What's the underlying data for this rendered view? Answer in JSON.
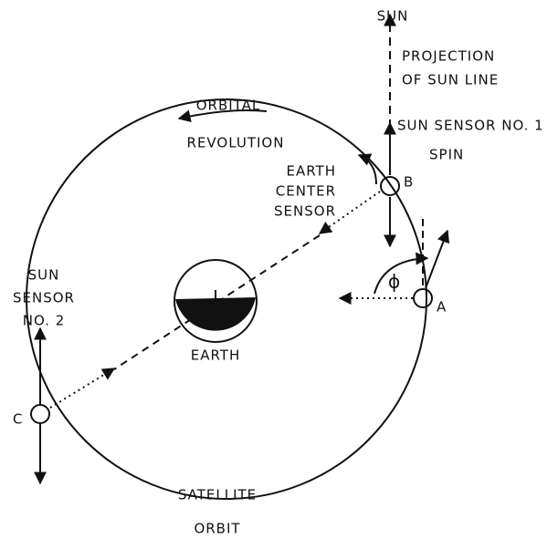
{
  "labels": {
    "sun": "SUN",
    "projection_1": "PROJECTION",
    "projection_2": "OF SUN LINE",
    "sun_sensor_1": "SUN SENSOR NO. 1",
    "spin": "SPIN",
    "orbital_1": "ORBITAL",
    "orbital_2": "REVOLUTION",
    "earth_sensor_1": "EARTH",
    "earth_sensor_2": "CENTER",
    "earth_sensor_3": "SENSOR",
    "point_b": "B",
    "point_a": "A",
    "point_c": "C",
    "angle": "ϕ",
    "sun_sensor_2_1": "SUN",
    "sun_sensor_2_2": "SENSOR",
    "sun_sensor_2_3": "NO. 2",
    "earth": "EARTH",
    "orbit_1": "SATELLITE",
    "orbit_2": "ORBIT"
  }
}
